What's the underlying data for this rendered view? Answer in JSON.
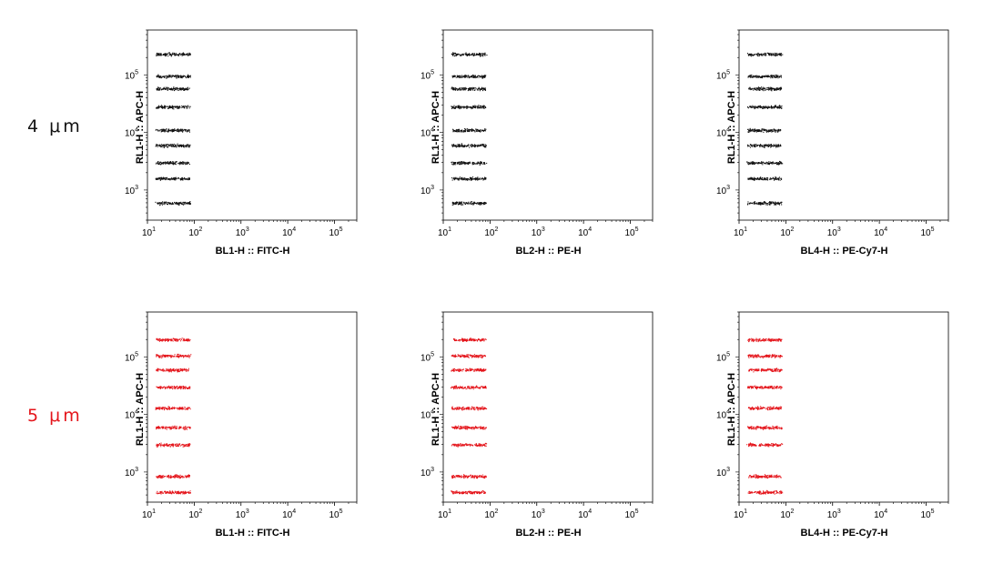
{
  "rows": [
    {
      "label": "4 μm",
      "color": "#111111"
    },
    {
      "label": "5 μm",
      "color": "#e4151b"
    }
  ],
  "chart_data": [
    {
      "type": "scatter",
      "row": "4 μm",
      "xlabel": "BL1-H :: FITC-H",
      "ylabel": "RL1-H :: APC-H",
      "x_scale": "log",
      "y_scale": "log",
      "xlim": [
        10,
        300000
      ],
      "ylim": [
        300,
        600000
      ],
      "x_ticks": [
        "10^1",
        "10^2",
        "10^3",
        "10^4",
        "10^5"
      ],
      "y_ticks": [
        "10^3",
        "10^4",
        "10^5"
      ],
      "x_range": [
        15,
        80
      ],
      "point_color": "#111111",
      "populations_y": [
        600,
        1600,
        3000,
        6000,
        11000,
        28000,
        58000,
        95000,
        230000
      ]
    },
    {
      "type": "scatter",
      "row": "4 μm",
      "xlabel": "BL2-H :: PE-H",
      "ylabel": "RL1-H :: APC-H",
      "x_scale": "log",
      "y_scale": "log",
      "xlim": [
        10,
        300000
      ],
      "ylim": [
        300,
        600000
      ],
      "x_ticks": [
        "10^1",
        "10^2",
        "10^3",
        "10^4",
        "10^5"
      ],
      "y_ticks": [
        "10^3",
        "10^4",
        "10^5"
      ],
      "x_range": [
        15,
        80
      ],
      "point_color": "#111111",
      "populations_y": [
        600,
        1600,
        3000,
        6000,
        11000,
        28000,
        58000,
        95000,
        230000
      ]
    },
    {
      "type": "scatter",
      "row": "4 μm",
      "xlabel": "BL4-H :: PE-Cy7-H",
      "ylabel": "RL1-H :: APC-H",
      "x_scale": "log",
      "y_scale": "log",
      "xlim": [
        10,
        300000
      ],
      "ylim": [
        300,
        600000
      ],
      "x_ticks": [
        "10^1",
        "10^2",
        "10^3",
        "10^4",
        "10^5"
      ],
      "y_ticks": [
        "10^3",
        "10^4",
        "10^5"
      ],
      "x_range": [
        15,
        80
      ],
      "point_color": "#111111",
      "populations_y": [
        600,
        1600,
        3000,
        6000,
        11000,
        28000,
        58000,
        95000,
        230000
      ]
    },
    {
      "type": "scatter",
      "row": "5 μm",
      "xlabel": "BL1-H :: FITC-H",
      "ylabel": "RL1-H :: APC-H",
      "x_scale": "log",
      "y_scale": "log",
      "xlim": [
        10,
        300000
      ],
      "ylim": [
        300,
        600000
      ],
      "x_ticks": [
        "10^1",
        "10^2",
        "10^3",
        "10^4",
        "10^5"
      ],
      "y_ticks": [
        "10^3",
        "10^4",
        "10^5"
      ],
      "x_range": [
        15,
        80
      ],
      "point_color": "#e4151b",
      "populations_y": [
        450,
        850,
        3000,
        6000,
        13000,
        30000,
        60000,
        105000,
        200000
      ]
    },
    {
      "type": "scatter",
      "row": "5 μm",
      "xlabel": "BL2-H :: PE-H",
      "ylabel": "RL1-H :: APC-H",
      "x_scale": "log",
      "y_scale": "log",
      "xlim": [
        10,
        300000
      ],
      "ylim": [
        300,
        600000
      ],
      "x_ticks": [
        "10^1",
        "10^2",
        "10^3",
        "10^4",
        "10^5"
      ],
      "y_ticks": [
        "10^3",
        "10^4",
        "10^5"
      ],
      "x_range": [
        15,
        80
      ],
      "point_color": "#e4151b",
      "populations_y": [
        450,
        850,
        3000,
        6000,
        13000,
        30000,
        60000,
        105000,
        200000
      ]
    },
    {
      "type": "scatter",
      "row": "5 μm",
      "xlabel": "BL4-H :: PE-Cy7-H",
      "ylabel": "RL1-H :: APC-H",
      "x_scale": "log",
      "y_scale": "log",
      "xlim": [
        10,
        300000
      ],
      "ylim": [
        300,
        600000
      ],
      "x_ticks": [
        "10^1",
        "10^2",
        "10^3",
        "10^4",
        "10^5"
      ],
      "y_ticks": [
        "10^3",
        "10^4",
        "10^5"
      ],
      "x_range": [
        15,
        80
      ],
      "point_color": "#e4151b",
      "populations_y": [
        450,
        850,
        3000,
        6000,
        13000,
        30000,
        60000,
        105000,
        200000
      ]
    }
  ]
}
